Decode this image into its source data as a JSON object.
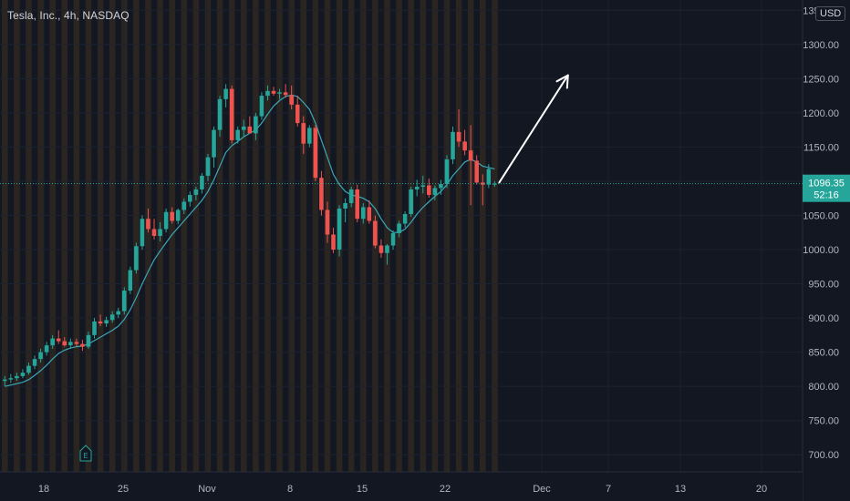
{
  "header": {
    "symbol_title": "Tesla, Inc., 4h, NASDAQ",
    "currency": "USD"
  },
  "price_label": {
    "price": "1096.35",
    "countdown": "52:16"
  },
  "earnings_marker": {
    "letter": "E"
  },
  "colors": {
    "background": "#131722",
    "up": "#26a69a",
    "down": "#ef5350",
    "ma_line": "#3ba7b8",
    "session_band": "#2a2520",
    "price_label_bg": "#26a69a",
    "arrow": "#ffffff"
  },
  "chart_data": {
    "type": "candlestick",
    "title": "",
    "interval": "4h",
    "ylim": [
      675,
      1365
    ],
    "y_ticks": [
      1350,
      1300,
      1250,
      1200,
      1150,
      1100,
      1050,
      1000,
      950,
      900,
      850,
      800,
      750,
      700
    ],
    "y_tick_labels": [
      "1350.00",
      "1300.00",
      "1250.00",
      "1200.00",
      "1150.00",
      "1100.00",
      "1050.00",
      "1000.00",
      "950.00",
      "900.00",
      "850.00",
      "800.00",
      "750.00",
      "700.00"
    ],
    "x_tick_labels": [
      "18",
      "25",
      "Nov",
      "8",
      "15",
      "22",
      "Dec",
      "7",
      "13",
      "20"
    ],
    "current_price": 1096.35,
    "grid": true,
    "ohlc_columns": [
      "open",
      "high",
      "low",
      "close"
    ],
    "candles": [
      [
        808,
        815,
        800,
        810
      ],
      [
        810,
        818,
        805,
        812
      ],
      [
        812,
        820,
        808,
        815
      ],
      [
        815,
        825,
        812,
        820
      ],
      [
        820,
        835,
        817,
        830
      ],
      [
        830,
        845,
        825,
        840
      ],
      [
        840,
        855,
        835,
        850
      ],
      [
        850,
        865,
        845,
        860
      ],
      [
        860,
        875,
        855,
        870
      ],
      [
        870,
        882,
        862,
        866
      ],
      [
        866,
        872,
        858,
        860
      ],
      [
        860,
        870,
        855,
        865
      ],
      [
        865,
        870,
        858,
        862
      ],
      [
        862,
        868,
        852,
        858
      ],
      [
        858,
        880,
        855,
        875
      ],
      [
        875,
        900,
        870,
        895
      ],
      [
        895,
        905,
        888,
        892
      ],
      [
        892,
        902,
        887,
        897
      ],
      [
        897,
        910,
        893,
        905
      ],
      [
        905,
        915,
        900,
        910
      ],
      [
        910,
        945,
        905,
        940
      ],
      [
        940,
        975,
        935,
        970
      ],
      [
        970,
        1010,
        965,
        1005
      ],
      [
        1005,
        1050,
        1000,
        1045
      ],
      [
        1045,
        1060,
        1025,
        1030
      ],
      [
        1030,
        1045,
        1015,
        1020
      ],
      [
        1020,
        1040,
        1012,
        1030
      ],
      [
        1030,
        1060,
        1025,
        1055
      ],
      [
        1055,
        1062,
        1038,
        1042
      ],
      [
        1042,
        1060,
        1037,
        1058
      ],
      [
        1058,
        1075,
        1052,
        1070
      ],
      [
        1070,
        1085,
        1063,
        1080
      ],
      [
        1080,
        1092,
        1072,
        1088
      ],
      [
        1088,
        1112,
        1082,
        1108
      ],
      [
        1108,
        1140,
        1100,
        1135
      ],
      [
        1135,
        1180,
        1120,
        1175
      ],
      [
        1175,
        1225,
        1165,
        1220
      ],
      [
        1220,
        1242,
        1208,
        1235
      ],
      [
        1235,
        1240,
        1155,
        1160
      ],
      [
        1160,
        1180,
        1155,
        1175
      ],
      [
        1175,
        1190,
        1165,
        1180
      ],
      [
        1180,
        1195,
        1170,
        1170
      ],
      [
        1170,
        1200,
        1160,
        1195
      ],
      [
        1195,
        1230,
        1190,
        1225
      ],
      [
        1225,
        1240,
        1218,
        1232
      ],
      [
        1232,
        1238,
        1225,
        1228
      ],
      [
        1228,
        1235,
        1220,
        1230
      ],
      [
        1230,
        1242,
        1222,
        1226
      ],
      [
        1226,
        1240,
        1205,
        1212
      ],
      [
        1212,
        1225,
        1180,
        1185
      ],
      [
        1185,
        1195,
        1140,
        1155
      ],
      [
        1155,
        1182,
        1150,
        1178
      ],
      [
        1178,
        1182,
        1100,
        1105
      ],
      [
        1105,
        1115,
        1050,
        1058
      ],
      [
        1058,
        1070,
        1010,
        1022
      ],
      [
        1022,
        1032,
        995,
        1000
      ],
      [
        1000,
        1065,
        990,
        1060
      ],
      [
        1060,
        1075,
        1040,
        1068
      ],
      [
        1068,
        1092,
        1062,
        1088
      ],
      [
        1088,
        1095,
        1040,
        1045
      ],
      [
        1045,
        1068,
        1038,
        1062
      ],
      [
        1062,
        1072,
        1038,
        1042
      ],
      [
        1042,
        1050,
        1002,
        1006
      ],
      [
        1006,
        1015,
        988,
        995
      ],
      [
        995,
        1008,
        978,
        1006
      ],
      [
        1006,
        1028,
        1000,
        1024
      ],
      [
        1024,
        1042,
        1018,
        1038
      ],
      [
        1038,
        1056,
        1032,
        1052
      ],
      [
        1052,
        1092,
        1048,
        1088
      ],
      [
        1088,
        1102,
        1078,
        1092
      ],
      [
        1092,
        1108,
        1082,
        1094
      ],
      [
        1094,
        1104,
        1076,
        1080
      ],
      [
        1080,
        1094,
        1072,
        1090
      ],
      [
        1090,
        1102,
        1080,
        1096
      ],
      [
        1096,
        1138,
        1090,
        1132
      ],
      [
        1132,
        1180,
        1125,
        1172
      ],
      [
        1172,
        1205,
        1150,
        1158
      ],
      [
        1158,
        1175,
        1138,
        1145
      ],
      [
        1145,
        1182,
        1065,
        1130
      ],
      [
        1130,
        1138,
        1095,
        1098
      ],
      [
        1098,
        1110,
        1065,
        1095
      ],
      [
        1095,
        1125,
        1090,
        1118
      ],
      [
        1096,
        1100,
        1092,
        1096.35
      ]
    ],
    "ma_values": [
      800,
      802,
      804,
      806,
      810,
      816,
      823,
      831,
      840,
      848,
      853,
      856,
      858,
      859,
      862,
      867,
      872,
      877,
      882,
      888,
      898,
      912,
      930,
      950,
      968,
      985,
      998,
      1010,
      1022,
      1032,
      1042,
      1052,
      1062,
      1072,
      1085,
      1102,
      1122,
      1142,
      1152,
      1158,
      1165,
      1170,
      1175,
      1185,
      1198,
      1210,
      1218,
      1224,
      1226,
      1224,
      1215,
      1205,
      1185,
      1160,
      1135,
      1110,
      1095,
      1085,
      1080,
      1078,
      1075,
      1070,
      1060,
      1045,
      1032,
      1025,
      1025,
      1030,
      1040,
      1052,
      1062,
      1070,
      1078,
      1085,
      1095,
      1108,
      1118,
      1128,
      1132,
      1128,
      1122,
      1120,
      1118
    ],
    "annotation": {
      "type": "arrow",
      "from": [
        82,
        1098
      ],
      "to": [
        90,
        1255
      ]
    }
  }
}
